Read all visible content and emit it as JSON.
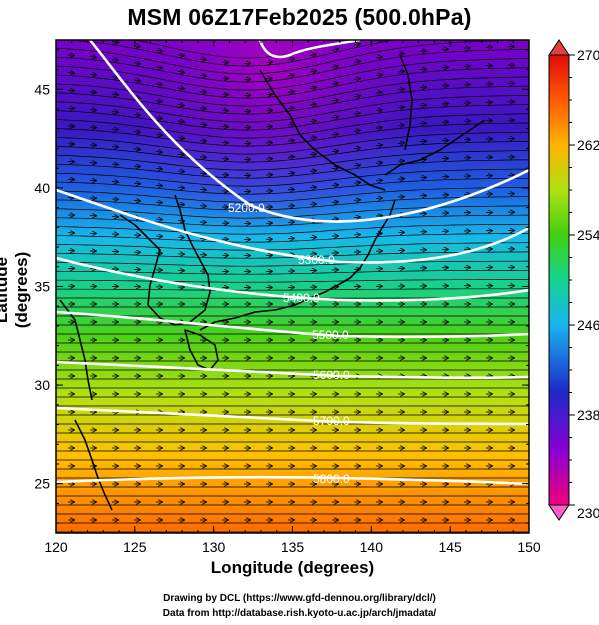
{
  "title": "MSM 06Z17Feb2025 (500.0hPa)",
  "axes": {
    "x_label": "Longitude (degrees)",
    "y_label": "Latitude  (degrees)",
    "x_ticks": [
      "120",
      "125",
      "130",
      "135",
      "140",
      "145",
      "150"
    ],
    "y_ticks": [
      "25",
      "30",
      "35",
      "40",
      "45"
    ]
  },
  "colorbar": {
    "min": 230,
    "max": 270,
    "tick_labels": [
      "270",
      "262",
      "254",
      "246",
      "238",
      "230"
    ],
    "colors": [
      "#f0007a",
      "#8a00d2",
      "#1e28c8",
      "#18b4ee",
      "#14d290",
      "#40d010",
      "#aee012",
      "#ffb400",
      "#ff5a00",
      "#e00a0a"
    ]
  },
  "map": {
    "lon_range": [
      120,
      150
    ],
    "lat_range": [
      22.5,
      47.5
    ],
    "contours": [
      {
        "value": 5200,
        "label": "5200.0"
      },
      {
        "value": 5300,
        "label": "5300.0"
      },
      {
        "value": 5400,
        "label": "5400.0"
      },
      {
        "value": 5500,
        "label": "5500.0"
      },
      {
        "value": 5600,
        "label": "5600.0"
      },
      {
        "value": 5700,
        "label": "5700.0"
      },
      {
        "value": 5800,
        "label": "5800.0"
      }
    ]
  },
  "footer": {
    "line1": "Drawing by DCL (https://www.gfd-dennou.org/library/dcl/)",
    "line2": "Data from http://database.rish.kyoto-u.ac.jp/arch/jmadata/"
  }
}
